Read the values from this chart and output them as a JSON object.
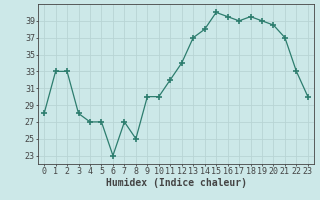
{
  "x": [
    0,
    1,
    2,
    3,
    4,
    5,
    6,
    7,
    8,
    9,
    10,
    11,
    12,
    13,
    14,
    15,
    16,
    17,
    18,
    19,
    20,
    21,
    22,
    23
  ],
  "y": [
    28,
    33,
    33,
    28,
    27,
    27,
    23,
    27,
    25,
    30,
    30,
    32,
    34,
    37,
    38,
    40,
    39.5,
    39,
    39.5,
    39,
    38.5,
    37,
    33,
    30
  ],
  "line_color": "#2d7d6e",
  "marker": "+",
  "marker_size": 4,
  "marker_lw": 1.2,
  "bg_color": "#cce8e8",
  "grid_color": "#b8d4d4",
  "xlabel": "Humidex (Indice chaleur)",
  "ylim": [
    22,
    41
  ],
  "yticks": [
    23,
    25,
    27,
    29,
    31,
    33,
    35,
    37,
    39
  ],
  "xticks": [
    0,
    1,
    2,
    3,
    4,
    5,
    6,
    7,
    8,
    9,
    10,
    11,
    12,
    13,
    14,
    15,
    16,
    17,
    18,
    19,
    20,
    21,
    22,
    23
  ],
  "axis_color": "#444444",
  "font_size_label": 7,
  "font_size_tick": 6
}
